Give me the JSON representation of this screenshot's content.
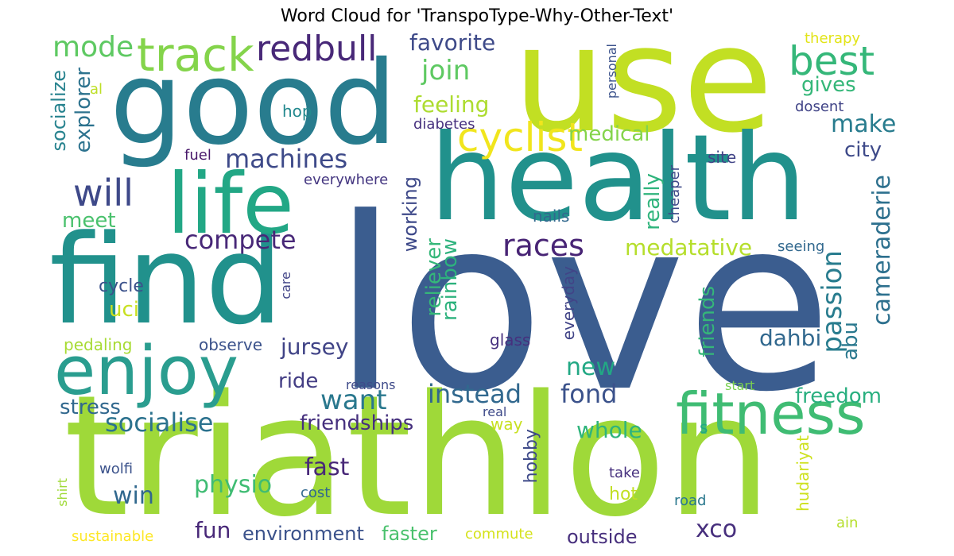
{
  "title": "Word Cloud for 'TranspoType-Why-Other-Text'",
  "palette": [
    "#440154",
    "#46327e",
    "#365c8d",
    "#277f8e",
    "#1fa187",
    "#4ac16d",
    "#a0da39",
    "#fde725"
  ],
  "words": [
    {
      "text": "love",
      "color": "#3b5d8f"
    },
    {
      "text": "triathlon",
      "color": "#9fd939"
    },
    {
      "text": "use",
      "color": "#c2df23"
    },
    {
      "text": "health",
      "color": "#21918c"
    },
    {
      "text": "find",
      "color": "#21918c"
    },
    {
      "text": "good",
      "color": "#287c8e"
    },
    {
      "text": "life",
      "color": "#22a785"
    },
    {
      "text": "enjoy",
      "color": "#2a9d8f"
    },
    {
      "text": "fitness",
      "color": "#3fbc73"
    },
    {
      "text": "track",
      "color": "#84d44b"
    },
    {
      "text": "cyclist",
      "color": "#f1e51d"
    },
    {
      "text": "best",
      "color": "#35b779"
    },
    {
      "text": "redbull",
      "color": "#482878"
    },
    {
      "text": "will",
      "color": "#3e4989"
    },
    {
      "text": "mode",
      "color": "#5ec962"
    },
    {
      "text": "races",
      "color": "#482475"
    },
    {
      "text": "compete",
      "color": "#482878"
    },
    {
      "text": "machines",
      "color": "#3e4a89"
    },
    {
      "text": "socialise",
      "color": "#2c728e"
    },
    {
      "text": "instead",
      "color": "#31688e"
    },
    {
      "text": "fond",
      "color": "#3b528b"
    },
    {
      "text": "join",
      "color": "#5ec962"
    },
    {
      "text": "favorite",
      "color": "#3e4a89"
    },
    {
      "text": "feeling",
      "color": "#addc30"
    },
    {
      "text": "medical",
      "color": "#84d44b"
    },
    {
      "text": "make",
      "color": "#287c8e"
    },
    {
      "text": "gives",
      "color": "#35b779"
    },
    {
      "text": "city",
      "color": "#3e4a89"
    },
    {
      "text": "socialize",
      "color": "#26828e"
    },
    {
      "text": "explorer",
      "color": "#2c728e"
    },
    {
      "text": "meet",
      "color": "#4ac16d"
    },
    {
      "text": "uci",
      "color": "#c8e020"
    },
    {
      "text": "jursey",
      "color": "#414487"
    },
    {
      "text": "ride",
      "color": "#433d84"
    },
    {
      "text": "want",
      "color": "#2a788e"
    },
    {
      "text": "new",
      "color": "#22a884"
    },
    {
      "text": "medatative",
      "color": "#b5de2b"
    },
    {
      "text": "dahbi",
      "color": "#31688e"
    },
    {
      "text": "passion",
      "color": "#287c8e"
    },
    {
      "text": "cameraderie",
      "color": "#2d708e"
    },
    {
      "text": "abu",
      "color": "#2a788e"
    },
    {
      "text": "freedom",
      "color": "#29af7f"
    },
    {
      "text": "whole",
      "color": "#2fb47c"
    },
    {
      "text": "friendships",
      "color": "#46307e"
    },
    {
      "text": "stress",
      "color": "#31688e"
    },
    {
      "text": "fast",
      "color": "#482878"
    },
    {
      "text": "physio",
      "color": "#3fbc73"
    },
    {
      "text": "win",
      "color": "#31688e"
    },
    {
      "text": "fun",
      "color": "#482878"
    },
    {
      "text": "xco",
      "color": "#472f7d"
    },
    {
      "text": "environment",
      "color": "#3b528b"
    },
    {
      "text": "faster",
      "color": "#4ac16d"
    },
    {
      "text": "outside",
      "color": "#472f7d"
    },
    {
      "text": "hobby",
      "color": "#3e4a89"
    },
    {
      "text": "really",
      "color": "#2fb47c"
    },
    {
      "text": "working",
      "color": "#3e4989"
    },
    {
      "text": "reliever",
      "color": "#35b779"
    },
    {
      "text": "rainbow",
      "color": "#2db27d"
    },
    {
      "text": "friends",
      "color": "#35b779"
    },
    {
      "text": "everyday",
      "color": "#414487"
    },
    {
      "text": "hudariyat",
      "color": "#cde11d"
    },
    {
      "text": "cycle",
      "color": "#3b528b"
    },
    {
      "text": "pedaling",
      "color": "#a8db34"
    },
    {
      "text": "observe",
      "color": "#3b528b"
    },
    {
      "text": "glass",
      "color": "#46307e"
    },
    {
      "text": "nails",
      "color": "#31688e"
    },
    {
      "text": "site",
      "color": "#414487"
    },
    {
      "text": "cheaper",
      "color": "#3e4a89"
    },
    {
      "text": "fuel",
      "color": "#48186a"
    },
    {
      "text": "everywhere",
      "color": "#453781"
    },
    {
      "text": "hop",
      "color": "#23898e"
    },
    {
      "text": "al",
      "color": "#bddf26"
    },
    {
      "text": "therapy",
      "color": "#e2e418"
    },
    {
      "text": "personal",
      "color": "#3b528b"
    },
    {
      "text": "dosent",
      "color": "#414487"
    },
    {
      "text": "diabetes",
      "color": "#46307e"
    },
    {
      "text": "seeing",
      "color": "#31688e"
    },
    {
      "text": "care",
      "color": "#414487"
    },
    {
      "text": "reasons",
      "color": "#3e4a89"
    },
    {
      "text": "real",
      "color": "#3e4a89"
    },
    {
      "text": "way",
      "color": "#c8e020"
    },
    {
      "text": "start",
      "color": "#7ad151"
    },
    {
      "text": "s",
      "color": "#22a884"
    },
    {
      "text": "wolfi",
      "color": "#3b528b"
    },
    {
      "text": "take",
      "color": "#46307e"
    },
    {
      "text": "hot",
      "color": "#c2df23"
    },
    {
      "text": "road",
      "color": "#2a788e"
    },
    {
      "text": "shirt",
      "color": "#a0da39"
    },
    {
      "text": "cost",
      "color": "#31688e"
    },
    {
      "text": "sustainable",
      "color": "#fde725"
    },
    {
      "text": "commute",
      "color": "#d5e21a"
    },
    {
      "text": "ain",
      "color": "#b5de2b"
    }
  ]
}
